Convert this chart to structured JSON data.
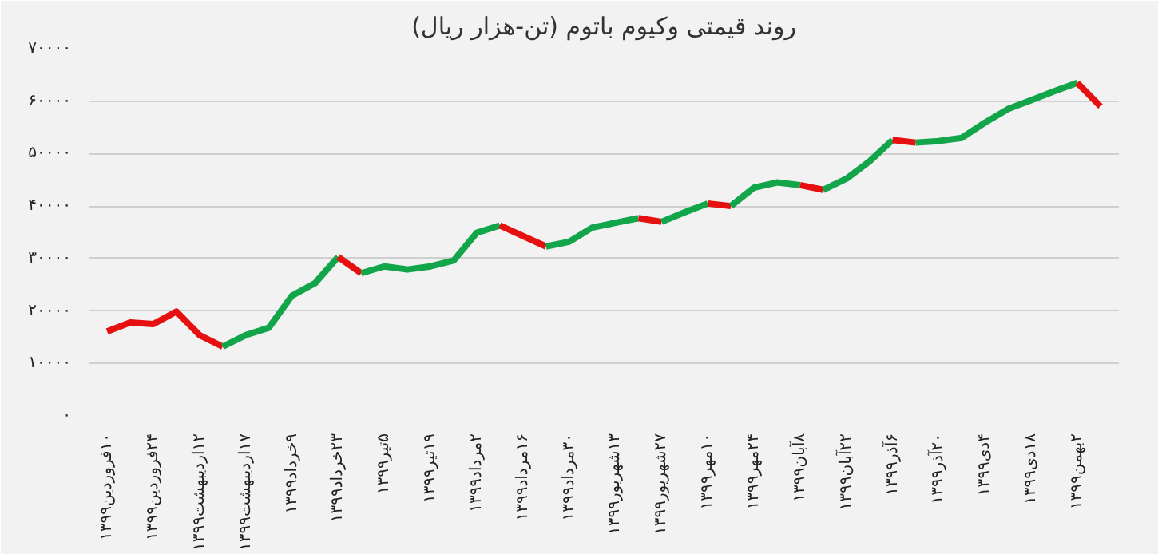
{
  "chart_data": {
    "type": "line",
    "title": "روند قیمتی وکیوم باتوم (تن-هزار ریال)",
    "categories": [
      "۱۰فروردین۱۳۹۹",
      null,
      "۲۴فروردین۱۳۹۹",
      null,
      "۱۲اردیبهشت۱۳۹۹",
      null,
      "۱۷اردیبهشت۱۳۹۹",
      null,
      "۹خرداد۱۳۹۹",
      null,
      "۲۳خرداد۱۳۹۹",
      null,
      "۵تیر۱۳۹۹",
      null,
      "۱۹تیر۱۳۹۹",
      null,
      "۲مرداد۱۳۹۹",
      null,
      "۱۶مرداد۱۳۹۹",
      null,
      "۳۰مرداد۱۳۹۹",
      null,
      "۱۳شهریور۱۳۹۹",
      null,
      "۲۷شهریور۱۳۹۹",
      null,
      "۱۰مهر۱۳۹۹",
      null,
      "۲۴مهر۱۳۹۹",
      null,
      "۸آبان۱۳۹۹",
      null,
      "۲۲آبان۱۳۹۹",
      null,
      "۶آذر۱۳۹۹",
      null,
      "۲۰آذر۱۳۹۹",
      null,
      "۴دی۱۳۹۹",
      null,
      "۱۸دی۱۳۹۹",
      null,
      "۲بهمن۱۳۹۹",
      null
    ],
    "series": [
      {
        "color": "#e61010",
        "values": [
          16100,
          17800,
          17500,
          19900,
          15400,
          13200,
          null,
          null,
          null,
          null,
          null,
          null,
          null,
          null,
          null,
          null,
          null,
          null,
          null,
          null,
          null,
          null,
          null,
          null,
          null,
          null,
          null,
          null,
          null,
          null,
          null,
          null,
          null,
          null,
          null,
          null,
          null,
          null,
          null,
          null,
          null,
          null,
          null,
          null
        ]
      },
      {
        "color": "#12a54a",
        "values": [
          null,
          null,
          null,
          null,
          null,
          13200,
          15400,
          16800,
          22900,
          25300,
          30300,
          null,
          null,
          null,
          null,
          null,
          null,
          null,
          null,
          null,
          null,
          null,
          null,
          null,
          null,
          null,
          null,
          null,
          null,
          null,
          null,
          null,
          null,
          null,
          null,
          null,
          null,
          null,
          null,
          null,
          null,
          null,
          null,
          null
        ]
      },
      {
        "color": "#e61010",
        "values": [
          null,
          null,
          null,
          null,
          null,
          null,
          null,
          null,
          null,
          null,
          30300,
          27200,
          null,
          null,
          null,
          null,
          null,
          null,
          null,
          null,
          null,
          null,
          null,
          null,
          null,
          null,
          null,
          null,
          null,
          null,
          null,
          null,
          null,
          null,
          null,
          null,
          null,
          null,
          null,
          null,
          null,
          null,
          null,
          null
        ]
      },
      {
        "color": "#12a54a",
        "values": [
          null,
          null,
          null,
          null,
          null,
          null,
          null,
          null,
          null,
          null,
          null,
          27200,
          28500,
          27900,
          28500,
          29600,
          34900,
          36300,
          null,
          null,
          null,
          null,
          null,
          null,
          null,
          null,
          null,
          null,
          null,
          null,
          null,
          null,
          null,
          null,
          null,
          null,
          null,
          null,
          null,
          null,
          null,
          null,
          null,
          null
        ]
      },
      {
        "color": "#e61010",
        "values": [
          null,
          null,
          null,
          null,
          null,
          null,
          null,
          null,
          null,
          null,
          null,
          null,
          null,
          null,
          null,
          null,
          null,
          36300,
          34300,
          32300,
          null,
          null,
          null,
          null,
          null,
          null,
          null,
          null,
          null,
          null,
          null,
          null,
          null,
          null,
          null,
          null,
          null,
          null,
          null,
          null,
          null,
          null,
          null,
          null
        ]
      },
      {
        "color": "#12a54a",
        "values": [
          null,
          null,
          null,
          null,
          null,
          null,
          null,
          null,
          null,
          null,
          null,
          null,
          null,
          null,
          null,
          null,
          null,
          null,
          null,
          32300,
          33200,
          35900,
          36800,
          37700,
          null,
          null,
          null,
          null,
          null,
          null,
          null,
          null,
          null,
          null,
          null,
          null,
          null,
          null,
          null,
          null,
          null,
          null,
          null,
          null
        ]
      },
      {
        "color": "#e61010",
        "values": [
          null,
          null,
          null,
          null,
          null,
          null,
          null,
          null,
          null,
          null,
          null,
          null,
          null,
          null,
          null,
          null,
          null,
          null,
          null,
          null,
          null,
          null,
          null,
          37700,
          37000,
          null,
          null,
          null,
          null,
          null,
          null,
          null,
          null,
          null,
          null,
          null,
          null,
          null,
          null,
          null,
          null,
          null,
          null,
          null
        ]
      },
      {
        "color": "#12a54a",
        "values": [
          null,
          null,
          null,
          null,
          null,
          null,
          null,
          null,
          null,
          null,
          null,
          null,
          null,
          null,
          null,
          null,
          null,
          null,
          null,
          null,
          null,
          null,
          null,
          null,
          37000,
          38800,
          40500,
          null,
          null,
          null,
          null,
          null,
          null,
          null,
          null,
          null,
          null,
          null,
          null,
          null,
          null,
          null,
          null,
          null
        ]
      },
      {
        "color": "#e61010",
        "values": [
          null,
          null,
          null,
          null,
          null,
          null,
          null,
          null,
          null,
          null,
          null,
          null,
          null,
          null,
          null,
          null,
          null,
          null,
          null,
          null,
          null,
          null,
          null,
          null,
          null,
          null,
          40500,
          40000,
          null,
          null,
          null,
          null,
          null,
          null,
          null,
          null,
          null,
          null,
          null,
          null,
          null,
          null,
          null,
          null
        ]
      },
      {
        "color": "#12a54a",
        "values": [
          null,
          null,
          null,
          null,
          null,
          null,
          null,
          null,
          null,
          null,
          null,
          null,
          null,
          null,
          null,
          null,
          null,
          null,
          null,
          null,
          null,
          null,
          null,
          null,
          null,
          null,
          null,
          40000,
          43500,
          44500,
          44000,
          null,
          null,
          null,
          null,
          null,
          null,
          null,
          null,
          null,
          null,
          null,
          null,
          null
        ]
      },
      {
        "color": "#e61010",
        "values": [
          null,
          null,
          null,
          null,
          null,
          null,
          null,
          null,
          null,
          null,
          null,
          null,
          null,
          null,
          null,
          null,
          null,
          null,
          null,
          null,
          null,
          null,
          null,
          null,
          null,
          null,
          null,
          null,
          null,
          null,
          44000,
          43100,
          null,
          null,
          null,
          null,
          null,
          null,
          null,
          null,
          null,
          null,
          null,
          null
        ]
      },
      {
        "color": "#12a54a",
        "values": [
          null,
          null,
          null,
          null,
          null,
          null,
          null,
          null,
          null,
          null,
          null,
          null,
          null,
          null,
          null,
          null,
          null,
          null,
          null,
          null,
          null,
          null,
          null,
          null,
          null,
          null,
          null,
          null,
          null,
          null,
          null,
          43100,
          45200,
          48500,
          52600,
          null,
          null,
          null,
          null,
          null,
          null,
          null,
          null,
          null
        ]
      },
      {
        "color": "#e61010",
        "values": [
          null,
          null,
          null,
          null,
          null,
          null,
          null,
          null,
          null,
          null,
          null,
          null,
          null,
          null,
          null,
          null,
          null,
          null,
          null,
          null,
          null,
          null,
          null,
          null,
          null,
          null,
          null,
          null,
          null,
          null,
          null,
          null,
          null,
          null,
          52600,
          52100,
          null,
          null,
          null,
          null,
          null,
          null,
          null,
          null
        ]
      },
      {
        "color": "#12a54a",
        "values": [
          null,
          null,
          null,
          null,
          null,
          null,
          null,
          null,
          null,
          null,
          null,
          null,
          null,
          null,
          null,
          null,
          null,
          null,
          null,
          null,
          null,
          null,
          null,
          null,
          null,
          null,
          null,
          null,
          null,
          null,
          null,
          null,
          null,
          null,
          null,
          52100,
          52400,
          53000,
          55900,
          58500,
          60200,
          61900,
          63500,
          null
        ]
      },
      {
        "color": "#e61010",
        "values": [
          null,
          null,
          null,
          null,
          null,
          null,
          null,
          null,
          null,
          null,
          null,
          null,
          null,
          null,
          null,
          null,
          null,
          null,
          null,
          null,
          null,
          null,
          null,
          null,
          null,
          null,
          null,
          null,
          null,
          null,
          null,
          null,
          null,
          null,
          null,
          null,
          null,
          null,
          null,
          null,
          null,
          null,
          63500,
          59000
        ]
      }
    ],
    "ylim": [
      0,
      70000
    ],
    "yticks": [
      {
        "value": 0,
        "label": "۰"
      },
      {
        "value": 10000,
        "label": "۱۰۰۰۰"
      },
      {
        "value": 20000,
        "label": "۲۰۰۰۰"
      },
      {
        "value": 30000,
        "label": "۳۰۰۰۰"
      },
      {
        "value": 40000,
        "label": "۴۰۰۰۰"
      },
      {
        "value": 50000,
        "label": "۵۰۰۰۰"
      },
      {
        "value": 60000,
        "label": "۶۰۰۰۰"
      },
      {
        "value": 70000,
        "label": "۷۰۰۰۰"
      }
    ],
    "grid": "y",
    "marker": "none",
    "line_style": "solid"
  }
}
